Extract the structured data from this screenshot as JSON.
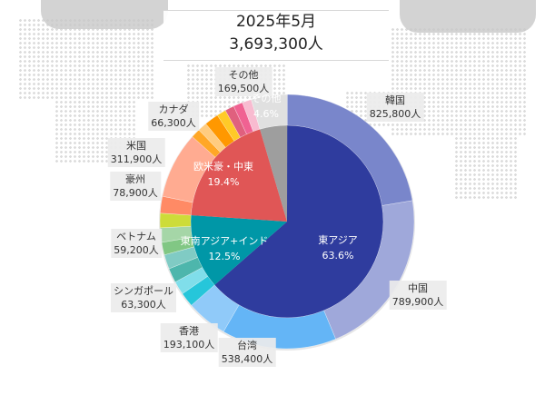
{
  "header": {
    "period": "2025年5月",
    "total": "3,693,300人"
  },
  "chart_data": {
    "type": "pie",
    "subtype": "nested-donut",
    "title": "2025年5月",
    "total": 3693300,
    "total_label": "3,693,300人",
    "legend": "none",
    "groups": [
      {
        "name": "東アジア",
        "percent_label": "63.6%",
        "percent": 63.6,
        "color": "#2f3c9e",
        "items": [
          {
            "name": "韓国",
            "value": 825800,
            "value_label": "825,800人",
            "color": "#7986cb"
          },
          {
            "name": "中国",
            "value": 789900,
            "value_label": "789,900人",
            "color": "#9fa8da"
          },
          {
            "name": "台湾",
            "value": 538400,
            "value_label": "538,400人",
            "color": "#64b5f6"
          },
          {
            "name": "香港",
            "value": 193100,
            "value_label": "193,100人",
            "color": "#90caf9"
          }
        ]
      },
      {
        "name": "東南アジア+インド",
        "percent_label": "12.5%",
        "percent": 12.5,
        "color": "#0097a7",
        "items": [
          {
            "name": "",
            "value": null,
            "color": "#26c6da"
          },
          {
            "name": "シンガポール",
            "value": 63300,
            "value_label": "63,300人",
            "color": "#80deea"
          },
          {
            "name": "",
            "value": null,
            "color": "#4db6ac"
          },
          {
            "name": "",
            "value": null,
            "color": "#80cbc4"
          },
          {
            "name": "ベトナム",
            "value": 59200,
            "value_label": "59,200人",
            "color": "#81c784"
          },
          {
            "name": "",
            "value": null,
            "color": "#a5d6a7"
          },
          {
            "name": "",
            "value": null,
            "color": "#cddc39"
          }
        ]
      },
      {
        "name": "欧米豪・中東",
        "percent_label": "19.4%",
        "percent": 19.4,
        "color": "#e05656",
        "items": [
          {
            "name": "豪州",
            "value": 78900,
            "value_label": "78,900人",
            "color": "#ff8a65"
          },
          {
            "name": "米国",
            "value": 311900,
            "value_label": "311,900人",
            "color": "#ffab91"
          },
          {
            "name": "",
            "value": null,
            "color": "#ffa726"
          },
          {
            "name": "",
            "value": null,
            "color": "#ffcc80"
          },
          {
            "name": "カナダ",
            "value": 66300,
            "value_label": "66,300人",
            "color": "#ff9800"
          },
          {
            "name": "",
            "value": null,
            "color": "#ffca28"
          },
          {
            "name": "",
            "value": null,
            "color": "#e0607e"
          },
          {
            "name": "",
            "value": null,
            "color": "#f06292"
          },
          {
            "name": "",
            "value": null,
            "color": "#f8bbd0"
          }
        ]
      },
      {
        "name": "その他",
        "percent_label": "4.6%",
        "percent": 4.6,
        "color": "#9e9e9e",
        "items": [
          {
            "name": "その他",
            "value": 169500,
            "value_label": "169,500人",
            "color": "#e0e0e0"
          }
        ]
      }
    ]
  }
}
